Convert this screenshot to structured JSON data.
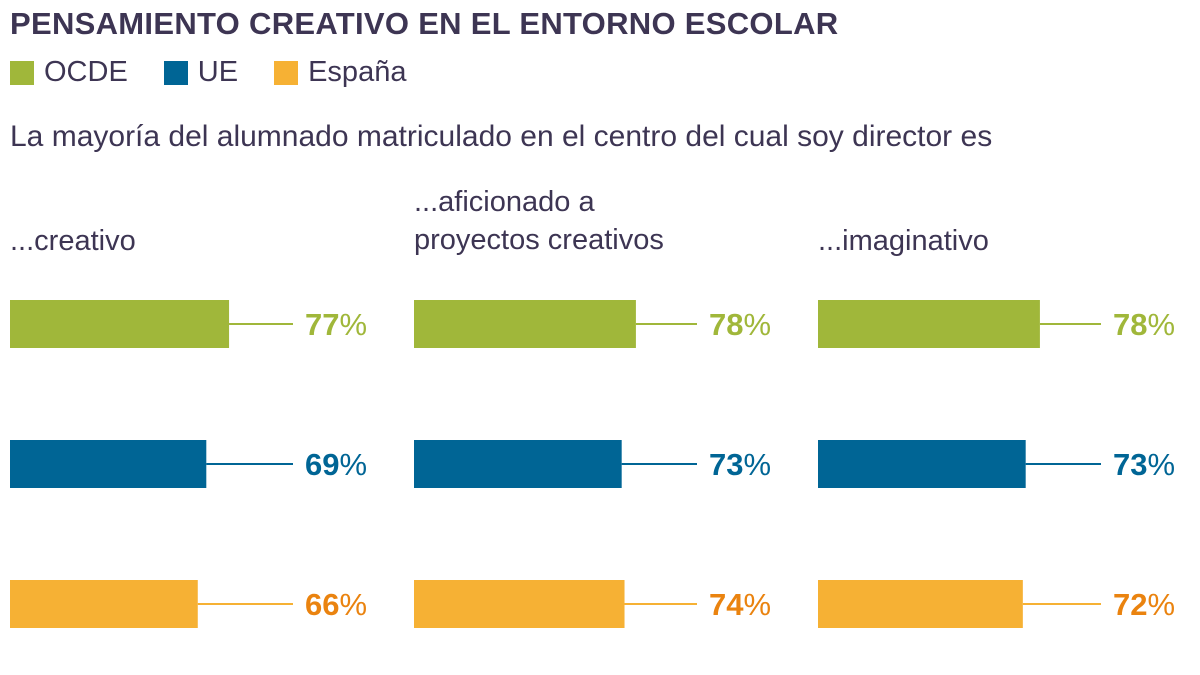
{
  "title": "PENSAMIENTO CREATIVO EN EL ENTORNO ESCOLAR",
  "subtitle": "La mayoría del alumnado matriculado en el centro del cual soy director es",
  "chart_data": {
    "type": "bar",
    "title": "PENSAMIENTO CREATIVO EN EL ENTORNO ESCOLAR",
    "subtitle": "La mayoría del alumnado matriculado en el centro del cual soy director es",
    "legend": [
      {
        "name": "OCDE",
        "color": "#a0b73a",
        "label_color": "#a0b73a"
      },
      {
        "name": "UE",
        "color": "#006595",
        "label_color": "#006595"
      },
      {
        "name": "España",
        "color": "#f6b134",
        "label_color": "#ea830f"
      }
    ],
    "categories": [
      "...creativo",
      "...aficionado a proyectos creativos",
      "...imaginativo"
    ],
    "category_lines": [
      [
        "...creativo"
      ],
      [
        "...aficionado a",
        "proyectos creativos"
      ],
      [
        "...imaginativo"
      ]
    ],
    "series": [
      {
        "name": "OCDE",
        "values": [
          77,
          78,
          78
        ]
      },
      {
        "name": "UE",
        "values": [
          69,
          73,
          73
        ]
      },
      {
        "name": "España",
        "values": [
          66,
          74,
          72
        ]
      }
    ],
    "unit": "%",
    "xlim": [
      0,
      100
    ]
  }
}
